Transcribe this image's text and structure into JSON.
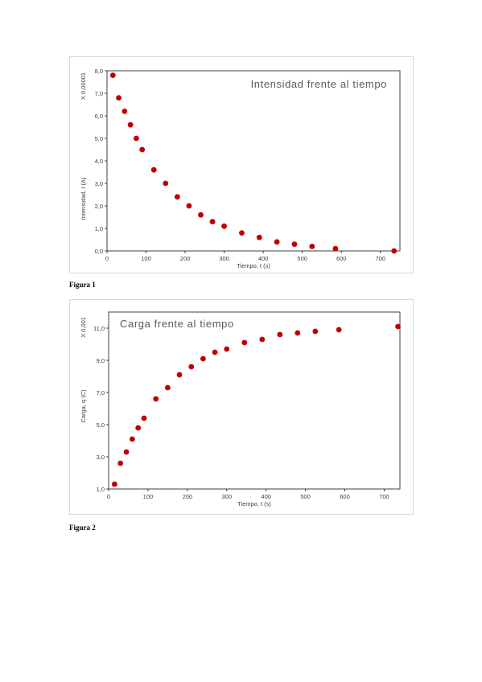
{
  "chart_data": [
    {
      "type": "scatter",
      "title": "Intensidad frente al tiempo",
      "xlabel": "Tiempo, t (s)",
      "ylabel": "Intensidad, I (A)",
      "y_multiplier": "X 0,00001",
      "xlim": [
        0,
        750
      ],
      "ylim": [
        0,
        8
      ],
      "x_ticks": [
        "0",
        "100",
        "200",
        "300",
        "400",
        "500",
        "600",
        "700"
      ],
      "y_ticks": [
        "0,0",
        "1,0",
        "2,0",
        "3,0",
        "4,0",
        "5,0",
        "6,0",
        "7,0",
        "8,0"
      ],
      "series_color": "#c00000",
      "x": [
        15,
        30,
        45,
        60,
        75,
        90,
        120,
        150,
        180,
        210,
        240,
        270,
        300,
        345,
        390,
        435,
        480,
        525,
        585,
        735
      ],
      "y": [
        7.8,
        6.8,
        6.2,
        5.6,
        5.0,
        4.5,
        3.6,
        3.0,
        2.4,
        2.0,
        1.6,
        1.3,
        1.1,
        0.8,
        0.6,
        0.4,
        0.3,
        0.2,
        0.1,
        0.0
      ],
      "grid": false,
      "caption": "Figura 1"
    },
    {
      "type": "scatter",
      "title": "Carga frente al tiempo",
      "xlabel": "Tiempo, t (s)",
      "ylabel": "Carga, q (C)",
      "y_multiplier": "X 0,001",
      "xlim": [
        0,
        740
      ],
      "ylim": [
        1,
        12
      ],
      "x_ticks": [
        "0",
        "100",
        "200",
        "300",
        "400",
        "500",
        "600",
        "700"
      ],
      "y_ticks": [
        "1,0",
        "3,0",
        "5,0",
        "7,0",
        "9,0",
        "11,0"
      ],
      "series_color": "#c00000",
      "x": [
        15,
        30,
        45,
        60,
        75,
        90,
        120,
        150,
        180,
        210,
        240,
        270,
        300,
        345,
        390,
        435,
        480,
        525,
        585,
        735
      ],
      "y": [
        1.3,
        2.6,
        3.3,
        4.1,
        4.8,
        5.4,
        6.6,
        7.3,
        8.1,
        8.6,
        9.1,
        9.5,
        9.7,
        10.1,
        10.3,
        10.6,
        10.7,
        10.8,
        10.9,
        11.1
      ],
      "grid": false,
      "caption": "Figura 2"
    }
  ]
}
